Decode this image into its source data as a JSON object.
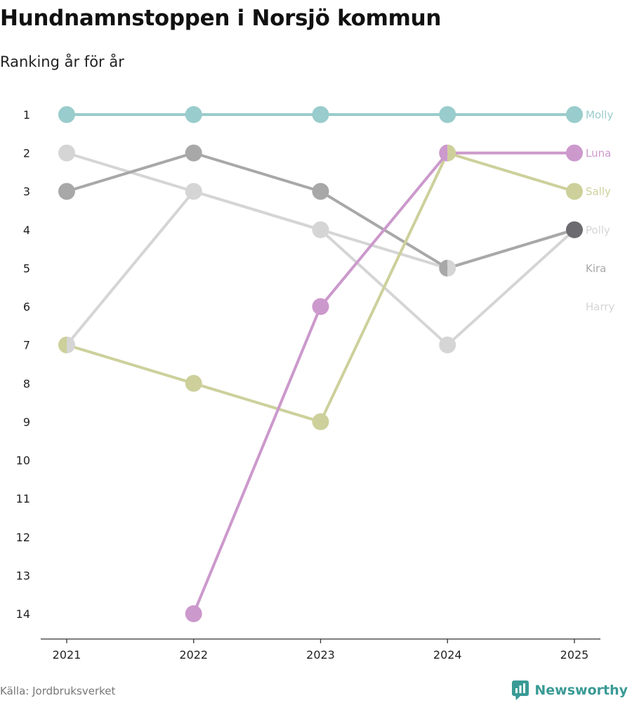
{
  "header": {
    "title": "Hundnamnstoppen i Norsjö kommun",
    "subtitle": "Ranking år för år"
  },
  "footer": {
    "source": "Källa: Jordbruksverket",
    "brand": "Newsworthy"
  },
  "colors": {
    "brand": "#3a9a95",
    "axis": "#333333"
  },
  "chart_data": {
    "type": "line",
    "title": "Hundnamnstoppen i Norsjö kommun",
    "subtitle": "Ranking år för år",
    "x": [
      "2021",
      "2022",
      "2023",
      "2024",
      "2025"
    ],
    "y_ticks": [
      1,
      2,
      3,
      4,
      5,
      6,
      7,
      8,
      9,
      10,
      11,
      12,
      13,
      14
    ],
    "ylim": [
      1,
      14
    ],
    "y_inverted": true,
    "xlabel": "",
    "ylabel": "",
    "grid": false,
    "series": [
      {
        "name": "Harry",
        "color": "#d5d5d5",
        "values": [
          2,
          3,
          4,
          7,
          4
        ]
      },
      {
        "name": "Polly",
        "color": "#d5d5d5",
        "values": [
          7,
          3,
          4,
          5,
          4
        ]
      },
      {
        "name": "Kira",
        "color": "#a8a8a8",
        "values": [
          3,
          2,
          3,
          5,
          4
        ]
      },
      {
        "name": "Sally",
        "color": "#cdd09b",
        "values": [
          7,
          8,
          9,
          2,
          3
        ]
      },
      {
        "name": "Luna",
        "color": "#cc99cc",
        "values": [
          null,
          14,
          6,
          2,
          2
        ]
      },
      {
        "name": "Molly",
        "color": "#99cccc",
        "values": [
          1,
          1,
          1,
          1,
          1
        ]
      }
    ],
    "end_labels": [
      {
        "name": "Molly",
        "color": "#99cccc",
        "rank": 1
      },
      {
        "name": "Luna",
        "color": "#cc99cc",
        "rank": 2
      },
      {
        "name": "Sally",
        "color": "#cdd09b",
        "rank": 3
      },
      {
        "name": "Polly",
        "color": "#d5d5d5",
        "rank": 4
      },
      {
        "name": "Kira",
        "color": "#a8a8a8",
        "rank": 5
      },
      {
        "name": "Harry",
        "color": "#d5d5d5",
        "rank": 6
      }
    ],
    "end_marker_color": "#6b6b70"
  }
}
